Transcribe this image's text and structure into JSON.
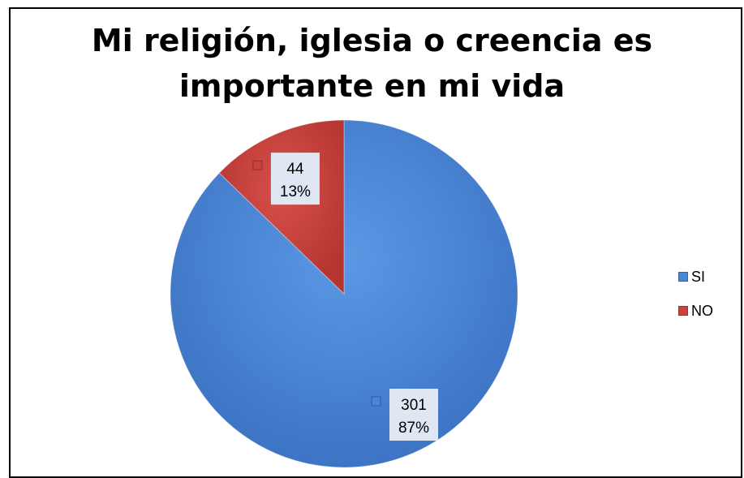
{
  "chart_data": {
    "type": "pie",
    "title": "Mi religión, iglesia o creencia es importante en mi vida",
    "categories": [
      "SI",
      "NO"
    ],
    "values": [
      301,
      44
    ],
    "percent_labels": [
      "87%",
      "13%"
    ],
    "colors": [
      "#4a86d4",
      "#c8433f"
    ],
    "legend": {
      "position": "right",
      "entries": [
        "SI",
        "NO"
      ]
    }
  }
}
